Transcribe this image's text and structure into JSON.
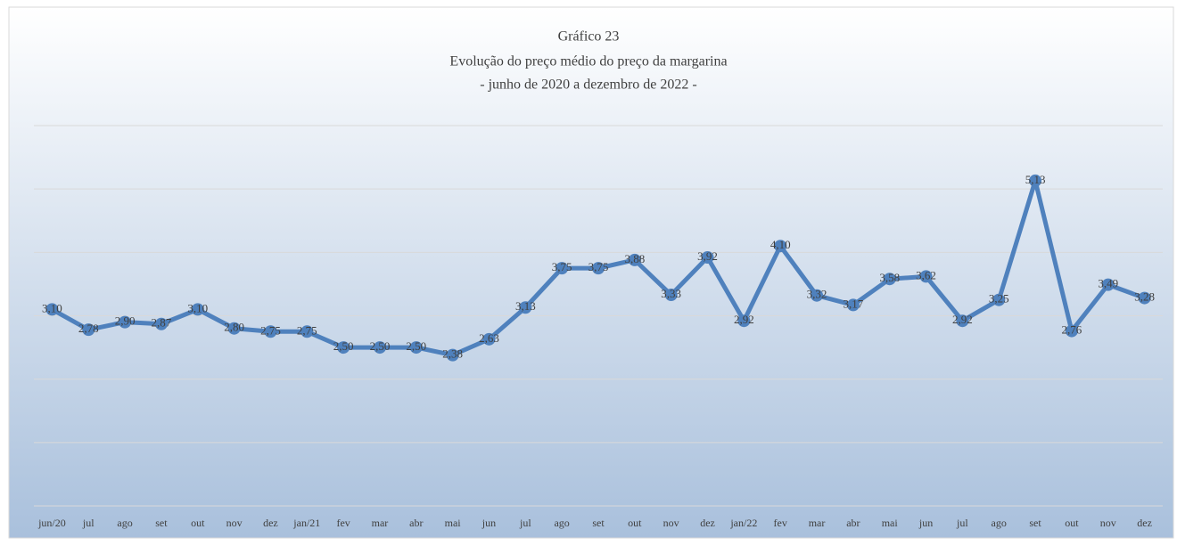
{
  "chart_data": {
    "type": "line",
    "title": "Gráfico 23",
    "subtitle": [
      "Evolução do preço médio do preço da margarina",
      "- junho de 2020 a dezembro de 2022 -"
    ],
    "categories": [
      "jun/20",
      "jul",
      "ago",
      "set",
      "out",
      "nov",
      "dez",
      "jan/21",
      "fev",
      "mar",
      "abr",
      "mai",
      "jun",
      "jul",
      "ago",
      "set",
      "out",
      "nov",
      "dez",
      "jan/22",
      "fev",
      "mar",
      "abr",
      "mai",
      "jun",
      "jul",
      "ago",
      "set",
      "out",
      "nov",
      "dez"
    ],
    "series": [
      {
        "name": "margarina",
        "color": "#4f81bd",
        "values": [
          3.1,
          2.78,
          2.9,
          2.87,
          3.1,
          2.8,
          2.75,
          2.75,
          2.5,
          2.5,
          2.5,
          2.38,
          2.63,
          3.13,
          3.75,
          3.75,
          3.88,
          3.33,
          3.92,
          2.92,
          4.1,
          3.32,
          3.17,
          3.58,
          3.62,
          2.92,
          3.25,
          5.13,
          2.76,
          3.49,
          3.28
        ],
        "value_labels": [
          "3,10",
          "2,78",
          "2,90",
          "2,87",
          "3,10",
          "2,80",
          "2,75",
          "2,75",
          "2,50",
          "2,50",
          "2,50",
          "2,38",
          "2,63",
          "3,13",
          "3,75",
          "3,75",
          "3,88",
          "3,33",
          "3,92",
          "2,92",
          "4,10",
          "3,32",
          "3,17",
          "3,58",
          "3,62",
          "2,92",
          "3,25",
          "5,13",
          "2,76",
          "3,49",
          "3,28"
        ]
      }
    ],
    "ylim": [
      0,
      6
    ],
    "yticks": [
      0,
      1,
      2,
      3,
      4,
      5,
      6
    ],
    "grid": true
  }
}
